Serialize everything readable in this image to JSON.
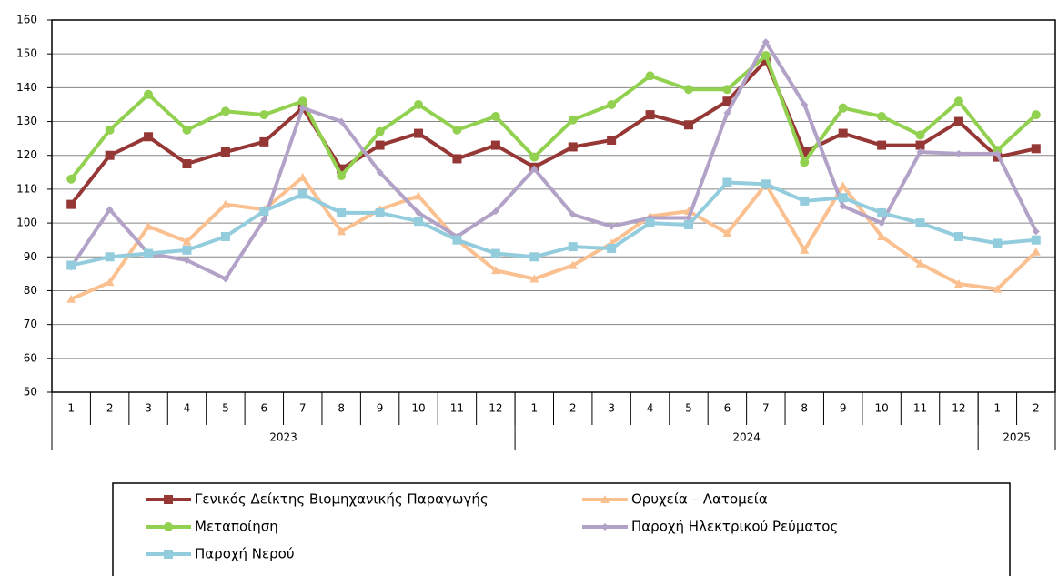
{
  "chart_data": {
    "type": "line",
    "categories": [
      "1",
      "2",
      "3",
      "4",
      "5",
      "6",
      "7",
      "8",
      "9",
      "10",
      "11",
      "12",
      "1",
      "2",
      "3",
      "4",
      "5",
      "6",
      "7",
      "8",
      "9",
      "10",
      "11",
      "12",
      "1",
      "2"
    ],
    "category_groups": [
      "2023",
      "2024",
      "2025"
    ],
    "ylim": [
      50,
      160
    ],
    "yticks": [
      50,
      60,
      70,
      80,
      90,
      100,
      110,
      120,
      130,
      140,
      150,
      160
    ],
    "grid": true,
    "series": [
      {
        "name": "Γενικός Δείκτης Βιομηχανικής Παραγωγής",
        "color": "#953735",
        "marker": "square",
        "values": [
          105.5,
          120,
          125.5,
          117.5,
          121,
          124,
          134,
          116,
          123,
          126.5,
          119,
          123,
          116.5,
          122.5,
          124.5,
          132,
          129,
          136,
          148,
          121,
          126.5,
          123,
          123,
          130,
          119.5,
          122
        ]
      },
      {
        "name": "Ορυχεία – Λατομεία",
        "color": "#FAC090",
        "marker": "triangle",
        "values": [
          77.5,
          82.5,
          99,
          94.5,
          105.5,
          104,
          113.5,
          97.5,
          104,
          108,
          95,
          86,
          83.5,
          87.5,
          94,
          102,
          103.5,
          97,
          111.5,
          92,
          111,
          96,
          88,
          82,
          80.5,
          91.5
        ]
      },
      {
        "name": "Μεταποίηση",
        "color": "#92D050",
        "marker": "circle",
        "values": [
          113,
          127.5,
          138,
          127.5,
          133,
          132,
          136,
          114,
          127,
          135,
          127.5,
          131.5,
          119.5,
          130.5,
          135,
          143.5,
          139.5,
          139.5,
          149.5,
          118,
          134,
          131.5,
          126,
          136,
          121.5,
          132
        ]
      },
      {
        "name": "Παροχή Ηλεκτρικού Ρεύματος",
        "color": "#B3A2C7",
        "marker": "diamond",
        "values": [
          87,
          104,
          91,
          89,
          83.5,
          101,
          134,
          130,
          115,
          103,
          96,
          103.5,
          116,
          102.5,
          99,
          101.5,
          101.5,
          132.5,
          153.5,
          135,
          105,
          100,
          121,
          120.5,
          120.5,
          97.5
        ]
      },
      {
        "name": "Παροχή Νερού",
        "color": "#93CDDD",
        "marker": "square",
        "values": [
          87.5,
          90,
          91,
          92,
          96,
          103.5,
          108.5,
          103,
          103,
          100.5,
          95,
          91,
          90,
          93,
          92.5,
          100,
          99.5,
          112,
          111.5,
          106.5,
          107.5,
          103,
          100,
          96,
          94,
          95
        ]
      }
    ]
  }
}
